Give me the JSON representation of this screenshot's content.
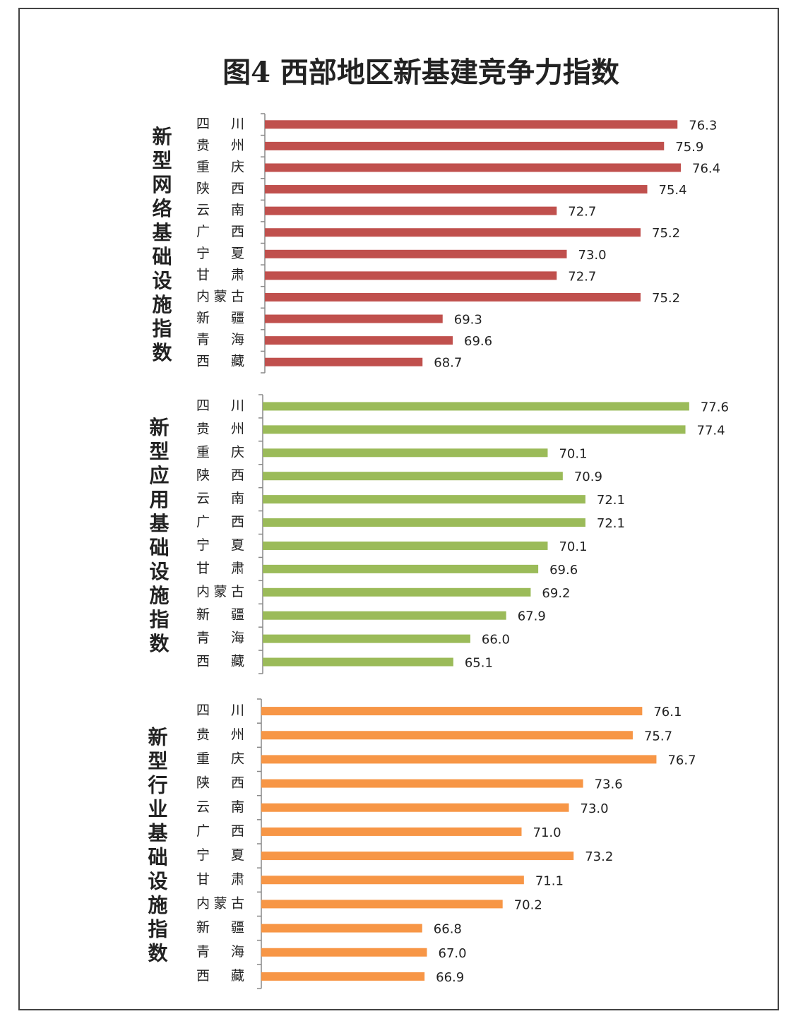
{
  "title": "图4 西部地区新基建竞争力指数",
  "chart_data": [
    {
      "type": "bar",
      "orientation": "horizontal",
      "title": "新型网络基础设施指数",
      "categories": [
        "四川",
        "贵州",
        "重庆",
        "陕西",
        "云南",
        "广西",
        "宁夏",
        "甘肃",
        "内蒙古",
        "新疆",
        "青海",
        "西藏"
      ],
      "values": [
        76.3,
        75.9,
        76.4,
        75.4,
        72.7,
        75.2,
        73.0,
        72.7,
        75.2,
        69.3,
        69.6,
        68.7
      ],
      "value_labels": [
        "76.3",
        "75.9",
        "76.4",
        "75.4",
        "72.7",
        "75.2",
        "73.0",
        "72.7",
        "75.2",
        "69.3",
        "69.6",
        "68.7"
      ],
      "color": "#c0504d",
      "xlim": [
        64,
        78
      ]
    },
    {
      "type": "bar",
      "orientation": "horizontal",
      "title": "新型应用基础设施指数",
      "categories": [
        "四川",
        "贵州",
        "重庆",
        "陕西",
        "云南",
        "广西",
        "宁夏",
        "甘肃",
        "内蒙古",
        "新疆",
        "青海",
        "西藏"
      ],
      "values": [
        77.6,
        77.4,
        70.1,
        70.9,
        72.1,
        72.1,
        70.1,
        69.6,
        69.2,
        67.9,
        66.0,
        65.1
      ],
      "value_labels": [
        "77.6",
        "77.4",
        "70.1",
        "70.9",
        "72.1",
        "72.1",
        "70.1",
        "69.6",
        "69.2",
        "67.9",
        "66.0",
        "65.1"
      ],
      "color": "#9bbb59",
      "xlim": [
        55,
        80
      ]
    },
    {
      "type": "bar",
      "orientation": "horizontal",
      "title": "新型行业基础设施指数",
      "categories": [
        "四川",
        "贵州",
        "重庆",
        "陕西",
        "云南",
        "广西",
        "宁夏",
        "甘肃",
        "内蒙古",
        "新疆",
        "青海",
        "西藏"
      ],
      "values": [
        76.1,
        75.7,
        76.7,
        73.6,
        73.0,
        71.0,
        73.2,
        71.1,
        70.2,
        66.8,
        67.0,
        66.9
      ],
      "value_labels": [
        "76.1",
        "75.7",
        "76.7",
        "73.6",
        "73.0",
        "71.0",
        "73.2",
        "71.1",
        "70.2",
        "66.8",
        "67.0",
        "66.9"
      ],
      "color": "#f79646",
      "xlim": [
        60,
        80
      ]
    }
  ]
}
